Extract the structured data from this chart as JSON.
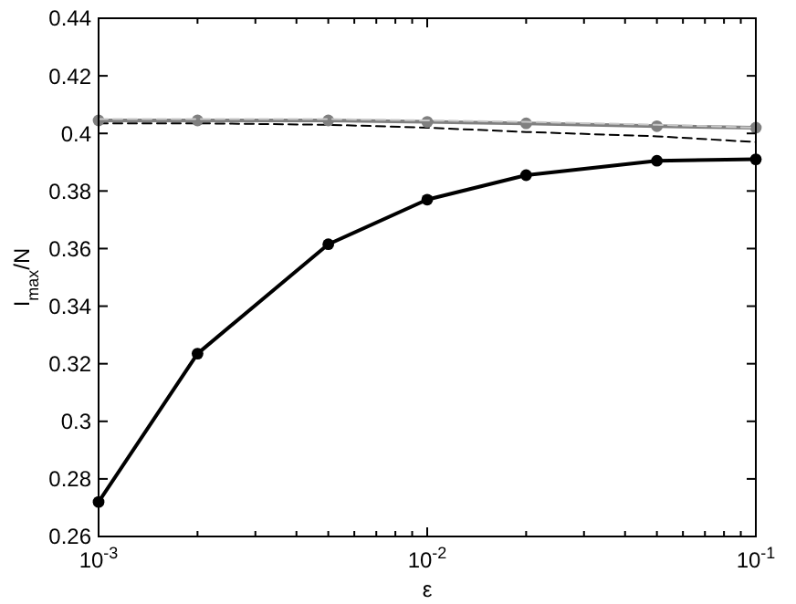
{
  "chart_data": {
    "type": "line",
    "xlabel": "ε",
    "ylabel": "I$_{max}$/N",
    "log": "x",
    "grid": false,
    "x": [
      0.001,
      0.002,
      0.005,
      0.01,
      0.02,
      0.05,
      0.1
    ],
    "xlim": [
      0.001,
      0.1
    ],
    "ylim": [
      0.26,
      0.44
    ],
    "xticks": [
      {
        "value": 0.001,
        "label": "10$^{-3}$"
      },
      {
        "value": 0.002,
        "label": null
      },
      {
        "value": 0.003,
        "label": null
      },
      {
        "value": 0.004,
        "label": null
      },
      {
        "value": 0.005,
        "label": null
      },
      {
        "value": 0.006,
        "label": null
      },
      {
        "value": 0.007,
        "label": null
      },
      {
        "value": 0.008,
        "label": null
      },
      {
        "value": 0.009,
        "label": null
      },
      {
        "value": 0.01,
        "label": "10$^{-2}$"
      },
      {
        "value": 0.02,
        "label": null
      },
      {
        "value": 0.03,
        "label": null
      },
      {
        "value": 0.04,
        "label": null
      },
      {
        "value": 0.05,
        "label": null
      },
      {
        "value": 0.06,
        "label": null
      },
      {
        "value": 0.07,
        "label": null
      },
      {
        "value": 0.08,
        "label": null
      },
      {
        "value": 0.09,
        "label": null
      },
      {
        "value": 0.1,
        "label": "10$^{-1}$"
      }
    ],
    "yticks": [
      0.26,
      0.28,
      0.3,
      0.32,
      0.34,
      0.36,
      0.38,
      0.4,
      0.42,
      0.44
    ],
    "series": [
      {
        "color": "#000000",
        "line_style": "dashed",
        "marker": "none",
        "values": [
          0.4035,
          0.4035,
          0.403,
          0.402,
          0.4005,
          0.399,
          0.397
        ]
      },
      {
        "color": "#808080",
        "line_style": "solid",
        "marker": "circle",
        "values": [
          0.4045,
          0.4045,
          0.4045,
          0.404,
          0.4035,
          0.4025,
          0.402
        ]
      },
      {
        "color": "#c8c8c8",
        "line_style": "dashed",
        "marker": "none",
        "values": [
          0.405,
          0.405,
          0.405,
          0.4045,
          0.404,
          0.403,
          0.402
        ]
      },
      {
        "color": "#000000",
        "line_style": "solid",
        "marker": "circle",
        "values": [
          0.272,
          0.3235,
          0.3615,
          0.377,
          0.3855,
          0.3905,
          0.391
        ]
      }
    ]
  }
}
